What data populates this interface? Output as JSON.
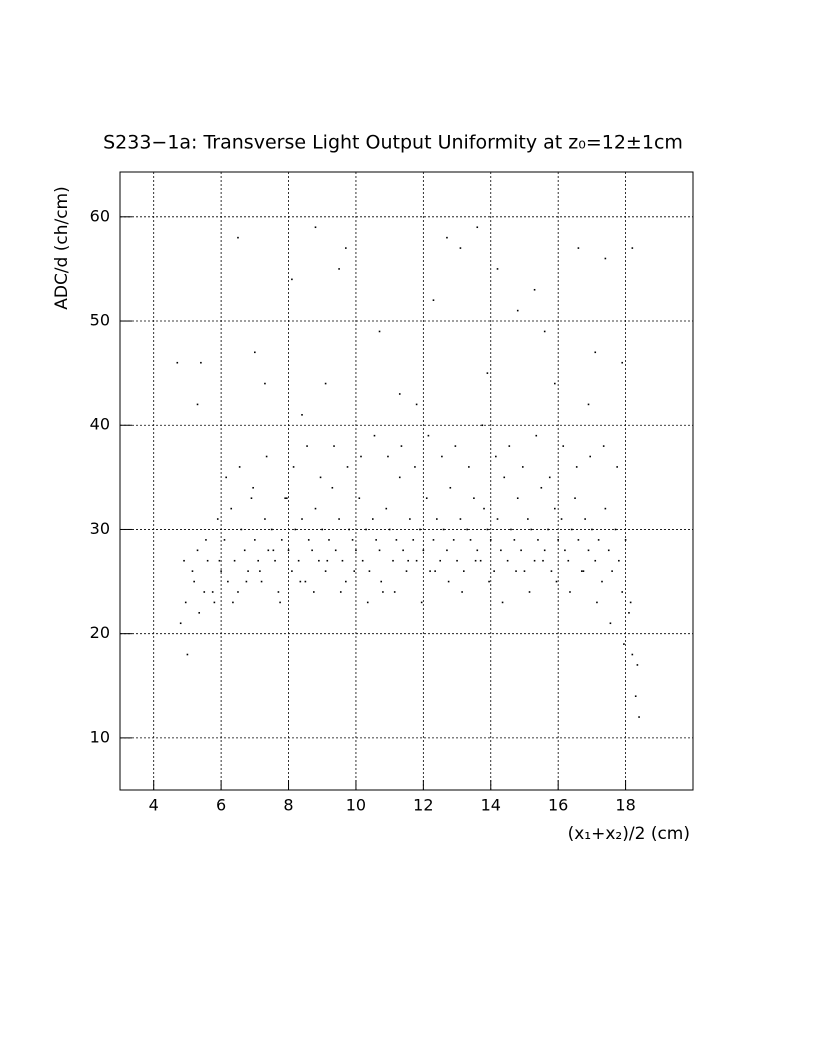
{
  "chart_data": {
    "type": "scatter",
    "title": "S233−1a: Transverse Light Output Uniformity at z₀=12±1cm",
    "x_label": "(x₁+x₂)/2 (cm)",
    "y_label": "ADC/d (ch/cm)",
    "color": "#000000",
    "grid": true,
    "xlim": [
      3,
      20
    ],
    "ylim": [
      5,
      64.3
    ],
    "xticks": [
      4,
      6,
      8,
      10,
      12,
      14,
      16,
      18
    ],
    "yticks": [
      10,
      20,
      30,
      40,
      50,
      60
    ],
    "x": [
      4.8,
      4.9,
      5.0,
      5.2,
      5.3,
      5.4,
      5.5,
      5.6,
      5.8,
      5.9,
      6.0,
      6.1,
      6.2,
      6.3,
      6.4,
      6.5,
      6.6,
      6.7,
      6.8,
      6.9,
      7.0,
      7.1,
      7.2,
      7.3,
      7.4,
      7.5,
      7.6,
      7.7,
      7.8,
      7.9,
      8.0,
      8.1,
      8.2,
      8.3,
      8.4,
      8.5,
      8.6,
      8.7,
      8.8,
      8.9,
      9.0,
      9.1,
      9.2,
      9.3,
      9.4,
      9.5,
      9.6,
      9.7,
      9.8,
      9.9,
      10.0,
      10.1,
      10.2,
      10.3,
      10.4,
      10.5,
      10.6,
      10.7,
      10.8,
      10.9,
      11.0,
      11.1,
      11.2,
      11.3,
      11.4,
      11.5,
      11.6,
      11.7,
      11.8,
      11.9,
      12.0,
      12.1,
      12.2,
      12.3,
      12.4,
      12.5,
      12.6,
      12.7,
      12.8,
      12.9,
      13.0,
      13.1,
      13.2,
      13.3,
      13.4,
      13.5,
      13.6,
      13.7,
      13.8,
      13.9,
      14.0,
      14.1,
      14.2,
      14.3,
      14.4,
      14.5,
      14.6,
      14.7,
      14.8,
      14.9,
      15.0,
      15.1,
      15.2,
      15.3,
      15.4,
      15.5,
      15.6,
      15.7,
      15.8,
      15.9,
      16.0,
      16.1,
      16.2,
      16.3,
      16.4,
      16.5,
      16.6,
      16.7,
      16.8,
      16.9,
      17.0,
      17.1,
      17.2,
      17.3,
      17.4,
      17.5,
      17.6,
      17.7,
      17.8,
      17.9,
      18.0,
      18.1,
      18.2,
      18.3,
      18.4,
      4.95,
      5.15,
      5.35,
      5.55,
      5.75,
      5.95,
      6.15,
      6.35,
      6.55,
      6.75,
      6.95,
      7.15,
      7.35,
      7.55,
      7.75,
      7.95,
      8.15,
      8.35,
      8.55,
      8.75,
      8.95,
      9.15,
      9.35,
      9.55,
      9.75,
      9.95,
      10.15,
      10.35,
      10.55,
      10.75,
      10.95,
      11.15,
      11.35,
      11.55,
      11.75,
      11.95,
      12.15,
      12.35,
      12.55,
      12.75,
      12.95,
      13.15,
      13.35,
      13.55,
      13.75,
      13.95,
      14.15,
      14.35,
      14.55,
      14.75,
      14.95,
      15.15,
      15.35,
      15.55,
      15.75,
      15.95,
      16.15,
      16.35,
      16.55,
      16.75,
      16.95,
      17.15,
      17.35,
      17.55,
      17.75,
      17.95,
      18.15,
      18.35,
      4.7,
      5.3,
      6.5,
      7.0,
      7.3,
      8.1,
      8.8,
      9.5,
      9.7,
      10.7,
      11.8,
      12.3,
      12.7,
      13.1,
      13.6,
      14.2,
      14.8,
      15.3,
      15.6,
      16.6,
      17.1,
      17.4,
      17.9,
      18.2,
      8.4,
      11.3,
      13.9,
      15.9,
      16.9,
      9.1
    ],
    "y": [
      21,
      27,
      18,
      25,
      28,
      46,
      24,
      27,
      23,
      31,
      26,
      29,
      25,
      32,
      27,
      24,
      30,
      28,
      26,
      33,
      29,
      27,
      25,
      31,
      28,
      30,
      27,
      24,
      29,
      33,
      28,
      26,
      30,
      27,
      31,
      25,
      29,
      28,
      32,
      27,
      30,
      26,
      29,
      34,
      28,
      31,
      27,
      25,
      30,
      29,
      28,
      33,
      27,
      30,
      26,
      31,
      29,
      28,
      24,
      32,
      30,
      27,
      29,
      35,
      28,
      26,
      31,
      29,
      27,
      30,
      28,
      33,
      26,
      29,
      31,
      27,
      30,
      28,
      34,
      29,
      27,
      31,
      26,
      30,
      29,
      33,
      28,
      27,
      32,
      30,
      29,
      26,
      31,
      28,
      35,
      27,
      30,
      29,
      33,
      28,
      26,
      31,
      30,
      27,
      29,
      34,
      28,
      30,
      26,
      32,
      29,
      31,
      28,
      27,
      30,
      33,
      29,
      26,
      31,
      28,
      30,
      27,
      29,
      25,
      32,
      28,
      26,
      30,
      27,
      24,
      29,
      22,
      18,
      14,
      12,
      23,
      26,
      22,
      29,
      24,
      27,
      35,
      23,
      36,
      25,
      34,
      26,
      37,
      28,
      23,
      33,
      36,
      25,
      38,
      24,
      35,
      27,
      38,
      24,
      36,
      26,
      37,
      23,
      39,
      25,
      37,
      24,
      38,
      27,
      36,
      23,
      39,
      26,
      37,
      25,
      38,
      24,
      36,
      27,
      40,
      25,
      37,
      23,
      38,
      26,
      36,
      24,
      39,
      27,
      35,
      25,
      38,
      24,
      36,
      26,
      37,
      23,
      38,
      21,
      36,
      19,
      23,
      17,
      46,
      42,
      58,
      47,
      44,
      54,
      59,
      55,
      57,
      49,
      42,
      52,
      58,
      57,
      59,
      55,
      51,
      53,
      49,
      57,
      47,
      56,
      46,
      57,
      41,
      43,
      45,
      44,
      42,
      44
    ]
  }
}
